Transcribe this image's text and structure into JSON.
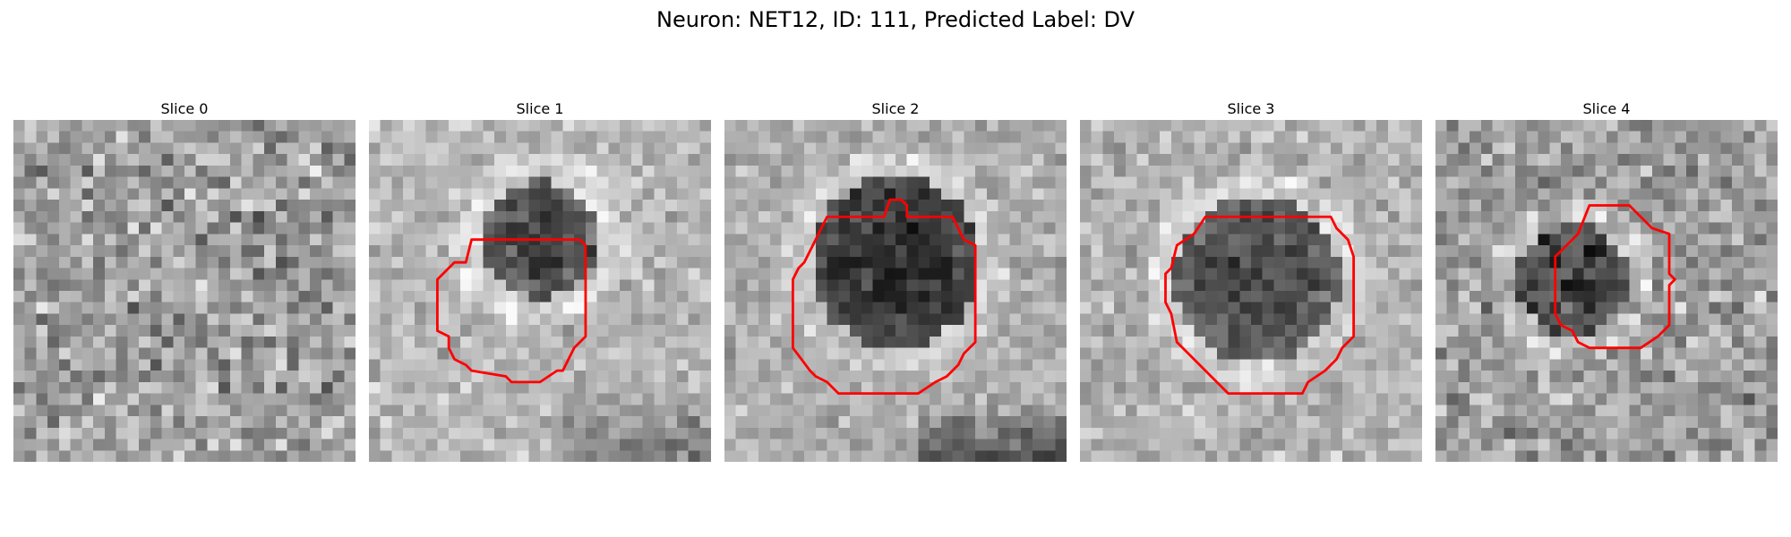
{
  "title": "Neuron: NET12, ID: 111, Predicted Label: DV",
  "panels": [
    {
      "title": "Slice 0",
      "has_contour": false
    },
    {
      "title": "Slice 1",
      "has_contour": true
    },
    {
      "title": "Slice 2",
      "has_contour": true
    },
    {
      "title": "Slice 3",
      "has_contour": true
    },
    {
      "title": "Slice 4",
      "has_contour": true
    }
  ],
  "colors": {
    "contour": "#ff0000"
  }
}
